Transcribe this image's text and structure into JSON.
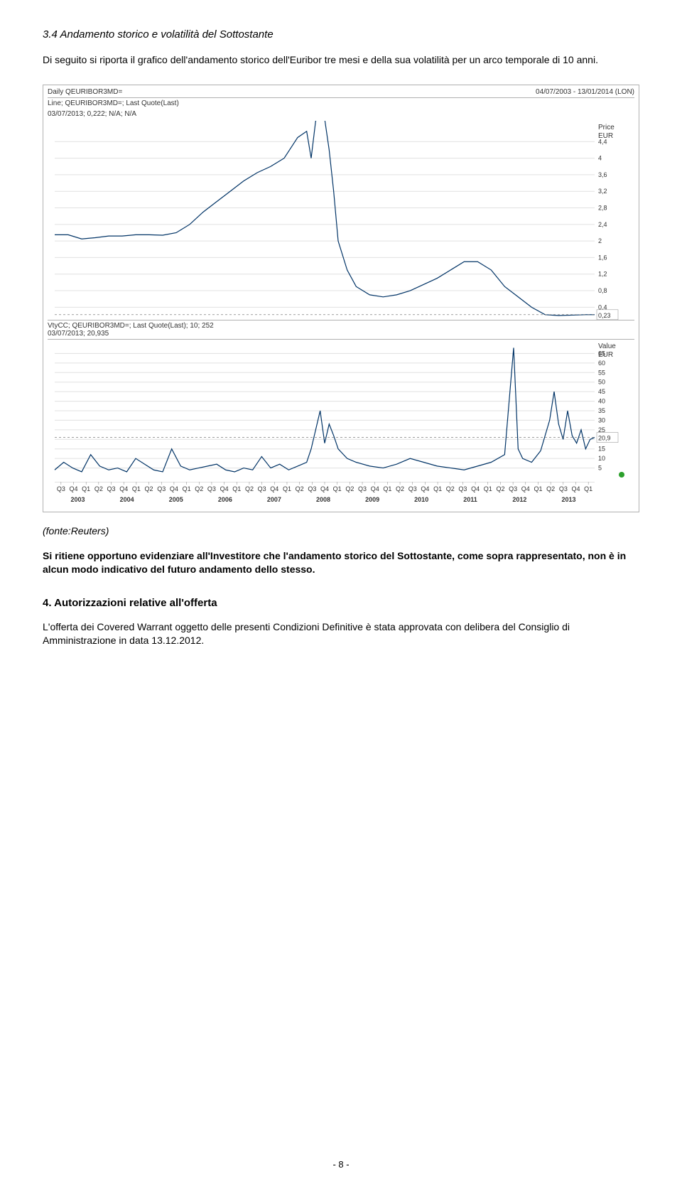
{
  "section": {
    "number": "3.4",
    "title": "Andamento storico e volatilità del Sottostante",
    "intro": "Di seguito si riporta il grafico dell'andamento storico dell'Euribor tre mesi e della sua volatilità per un arco temporale di 10 anni."
  },
  "chart": {
    "header_left": "Daily QEURIBOR3MD=",
    "header_right": "04/07/2003 - 13/01/2014 (LON)",
    "subheader_line1": "Line; QEURIBOR3MD=; Last Quote(Last)",
    "subheader_line2": "03/07/2013; 0,222; N/A; N/A",
    "top_panel": {
      "ylabel_top": "Price",
      "ylabel_unit": "EUR",
      "ylim": [
        0.2,
        4.8
      ],
      "yticks": [
        4.4,
        4,
        3.6,
        3.2,
        2.8,
        2.4,
        2,
        1.6,
        1.2,
        0.8,
        0.4
      ],
      "last_box": "0,23",
      "line_color": "#003366",
      "grid_color": "#e0e0e0",
      "background_color": "#ffffff",
      "points": [
        [
          0,
          2.15
        ],
        [
          3,
          2.15
        ],
        [
          6,
          2.05
        ],
        [
          9,
          2.08
        ],
        [
          12,
          2.12
        ],
        [
          15,
          2.12
        ],
        [
          18,
          2.15
        ],
        [
          21,
          2.15
        ],
        [
          24,
          2.14
        ],
        [
          27,
          2.2
        ],
        [
          30,
          2.4
        ],
        [
          33,
          2.7
        ],
        [
          36,
          2.95
        ],
        [
          39,
          3.2
        ],
        [
          42,
          3.45
        ],
        [
          45,
          3.65
        ],
        [
          48,
          3.8
        ],
        [
          51,
          4.0
        ],
        [
          54,
          4.5
        ],
        [
          56,
          4.65
        ],
        [
          57,
          4.0
        ],
        [
          58,
          4.9
        ],
        [
          59,
          5.0
        ],
        [
          60,
          4.95
        ],
        [
          61,
          4.2
        ],
        [
          62,
          3.2
        ],
        [
          63,
          2.0
        ],
        [
          65,
          1.3
        ],
        [
          67,
          0.9
        ],
        [
          70,
          0.7
        ],
        [
          73,
          0.65
        ],
        [
          76,
          0.7
        ],
        [
          79,
          0.8
        ],
        [
          82,
          0.95
        ],
        [
          85,
          1.1
        ],
        [
          88,
          1.3
        ],
        [
          91,
          1.5
        ],
        [
          94,
          1.5
        ],
        [
          97,
          1.3
        ],
        [
          100,
          0.9
        ],
        [
          103,
          0.65
        ],
        [
          106,
          0.4
        ],
        [
          109,
          0.22
        ],
        [
          112,
          0.2
        ],
        [
          115,
          0.21
        ],
        [
          118,
          0.22
        ],
        [
          120,
          0.22
        ]
      ]
    },
    "mid_header_line1": "VtyCC; QEURIBOR3MD=; Last Quote(Last); 10; 252",
    "mid_header_line2": "03/07/2013; 20,935",
    "bottom_panel": {
      "ylabel_top": "Value",
      "ylabel_unit": "EUR",
      "ylim": [
        0,
        70
      ],
      "yticks": [
        65,
        60,
        55,
        50,
        45,
        40,
        35,
        30,
        25,
        20,
        15,
        10,
        5
      ],
      "last_box": "20,9",
      "line_color": "#003366",
      "grid_color": "#e0e0e0",
      "points": [
        [
          0,
          4
        ],
        [
          2,
          8
        ],
        [
          4,
          5
        ],
        [
          6,
          3
        ],
        [
          8,
          12
        ],
        [
          10,
          6
        ],
        [
          12,
          4
        ],
        [
          14,
          5
        ],
        [
          16,
          3
        ],
        [
          18,
          10
        ],
        [
          20,
          7
        ],
        [
          22,
          4
        ],
        [
          24,
          3
        ],
        [
          26,
          15
        ],
        [
          28,
          6
        ],
        [
          30,
          4
        ],
        [
          32,
          5
        ],
        [
          34,
          6
        ],
        [
          36,
          7
        ],
        [
          38,
          4
        ],
        [
          40,
          3
        ],
        [
          42,
          5
        ],
        [
          44,
          4
        ],
        [
          46,
          11
        ],
        [
          48,
          5
        ],
        [
          50,
          7
        ],
        [
          52,
          4
        ],
        [
          54,
          6
        ],
        [
          56,
          8
        ],
        [
          57,
          15
        ],
        [
          58,
          25
        ],
        [
          59,
          35
        ],
        [
          60,
          18
        ],
        [
          61,
          28
        ],
        [
          62,
          22
        ],
        [
          63,
          15
        ],
        [
          65,
          10
        ],
        [
          67,
          8
        ],
        [
          70,
          6
        ],
        [
          73,
          5
        ],
        [
          76,
          7
        ],
        [
          79,
          10
        ],
        [
          82,
          8
        ],
        [
          85,
          6
        ],
        [
          88,
          5
        ],
        [
          91,
          4
        ],
        [
          94,
          6
        ],
        [
          97,
          8
        ],
        [
          100,
          12
        ],
        [
          102,
          68
        ],
        [
          103,
          15
        ],
        [
          104,
          10
        ],
        [
          106,
          8
        ],
        [
          108,
          14
        ],
        [
          110,
          30
        ],
        [
          111,
          45
        ],
        [
          112,
          28
        ],
        [
          113,
          20
        ],
        [
          114,
          35
        ],
        [
          115,
          22
        ],
        [
          116,
          18
        ],
        [
          117,
          25
        ],
        [
          118,
          15
        ],
        [
          119,
          20
        ],
        [
          120,
          21
        ]
      ]
    },
    "x_axis": {
      "years": [
        "2003",
        "2004",
        "2005",
        "2006",
        "2007",
        "2008",
        "2009",
        "2010",
        "2011",
        "2012",
        "2013"
      ],
      "quarter_labels": [
        "Q3",
        "Q4",
        "Q1",
        "Q2",
        "Q3",
        "Q4",
        "Q1",
        "Q2",
        "Q3",
        "Q4",
        "Q1",
        "Q2",
        "Q3",
        "Q4",
        "Q1",
        "Q2",
        "Q3",
        "Q4",
        "Q1",
        "Q2",
        "Q3",
        "Q4",
        "Q1",
        "Q2",
        "Q3",
        "Q4",
        "Q1",
        "Q2",
        "Q3",
        "Q4",
        "Q1",
        "Q2",
        "Q3",
        "Q4",
        "Q1",
        "Q2",
        "Q3",
        "Q4",
        "Q1",
        "Q2",
        "Q3",
        "Q4",
        "Q1"
      ]
    }
  },
  "source": "(fonte:Reuters)",
  "bold_statement": "Si ritiene opportuno evidenziare all'Investitore che l'andamento storico del Sottostante, come sopra rappresentato, non è in alcun modo indicativo del futuro andamento dello stesso.",
  "section4": {
    "heading": "4. Autorizzazioni relative all'offerta",
    "body": "L'offerta dei Covered Warrant oggetto delle presenti Condizioni Definitive è stata approvata con delibera del Consiglio di Amministrazione in data 13.12.2012."
  },
  "page_number": "- 8 -"
}
